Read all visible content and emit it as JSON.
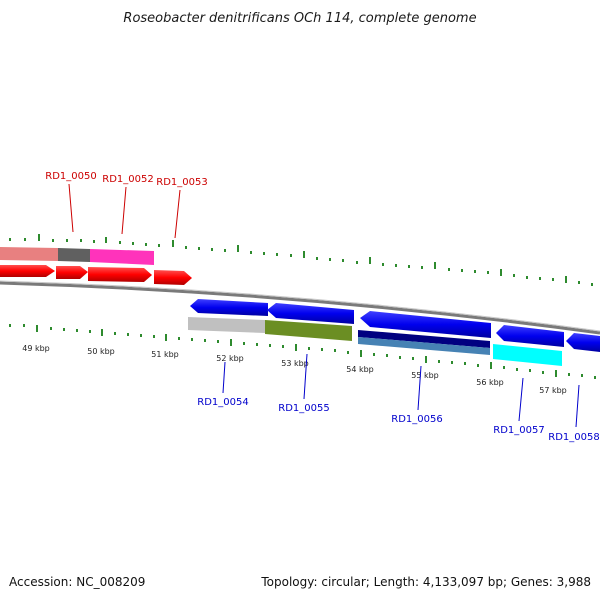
{
  "title": "Roseobacter denitrificans OCh 114, complete genome",
  "footer": {
    "accession": "Accession: NC_008209",
    "summary": "Topology: circular; Length: 4,133,097 bp; Genes: 3,988"
  },
  "colors": {
    "forward_label": "#cc0000",
    "reverse_label": "#0000cc",
    "tick": "#2e8b2e",
    "backbone": "#808080"
  },
  "scale_ticks": [
    "49 kbp",
    "50 kbp",
    "51 kbp",
    "52 kbp",
    "53 kbp",
    "54 kbp",
    "55 kbp",
    "56 kbp",
    "57 kbp"
  ],
  "forward_labels": [
    "RD1_0050",
    "RD1_0052",
    "RD1_0053"
  ],
  "reverse_labels": [
    "RD1_0054",
    "RD1_0055",
    "RD1_0056",
    "RD1_0057",
    "RD1_0058"
  ]
}
